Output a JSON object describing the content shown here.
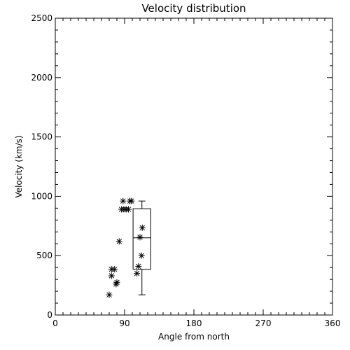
{
  "chart_data": {
    "type": "scatter",
    "title": "Velocity distribution",
    "xlabel": "Angle from north",
    "ylabel": "Velocity (km/s)",
    "xlim": [
      0,
      360
    ],
    "ylim": [
      0,
      2500
    ],
    "xticks": [
      0,
      90,
      180,
      270,
      360
    ],
    "yticks": [
      0,
      500,
      1000,
      1500,
      2000,
      2500
    ],
    "xtick_labels": [
      "0",
      "90",
      "180",
      "270",
      "360"
    ],
    "ytick_labels": [
      "0",
      "500",
      "1000",
      "1500",
      "2000",
      "2500"
    ],
    "grid": false,
    "legend": "none",
    "points": [
      {
        "x": 70,
        "y": 170
      },
      {
        "x": 73,
        "y": 330
      },
      {
        "x": 73,
        "y": 385
      },
      {
        "x": 77,
        "y": 385
      },
      {
        "x": 79,
        "y": 260
      },
      {
        "x": 80,
        "y": 275
      },
      {
        "x": 83,
        "y": 620
      },
      {
        "x": 86,
        "y": 890
      },
      {
        "x": 88,
        "y": 960
      },
      {
        "x": 89,
        "y": 890
      },
      {
        "x": 92,
        "y": 890
      },
      {
        "x": 95,
        "y": 890
      },
      {
        "x": 97,
        "y": 960
      },
      {
        "x": 99,
        "y": 960
      },
      {
        "x": 106,
        "y": 350
      },
      {
        "x": 108,
        "y": 410
      },
      {
        "x": 110,
        "y": 655
      },
      {
        "x": 112,
        "y": 500
      },
      {
        "x": 113,
        "y": 735
      }
    ],
    "boxplot": {
      "x_left": 101,
      "x_right": 124,
      "whisker_low": 170,
      "q1": 385,
      "median": 650,
      "q3": 895,
      "whisker_high": 960
    },
    "colors": {
      "ink": "#000000",
      "background": "#ffffff"
    }
  }
}
